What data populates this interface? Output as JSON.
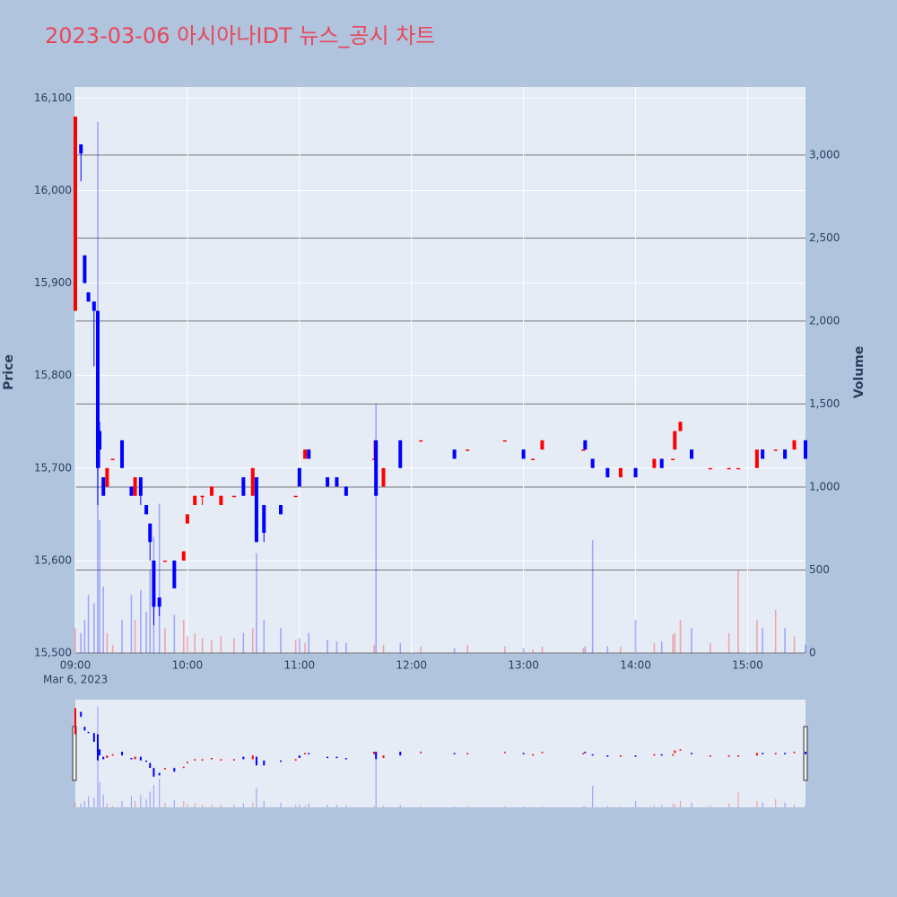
{
  "chart_data": {
    "type": "candlestick",
    "title": "2023-03-06 아시아나IDT 뉴스_공시 차트",
    "y_label": "Price",
    "y2_label": "Volume",
    "x_date_label": "Mar 6, 2023",
    "increasing_color": "#ff0000",
    "decreasing_color": "#0000ff",
    "x": [
      "09:00",
      "09:03",
      "09:05",
      "09:07",
      "09:10",
      "09:12",
      "09:13",
      "09:15",
      "09:17",
      "09:20",
      "09:25",
      "09:30",
      "09:32",
      "09:35",
      "09:38",
      "09:40",
      "09:42",
      "09:45",
      "09:48",
      "09:53",
      "09:58",
      "10:00",
      "10:04",
      "10:08",
      "10:13",
      "10:18",
      "10:25",
      "10:30",
      "10:35",
      "10:37",
      "10:41",
      "10:50",
      "10:58",
      "11:00",
      "11:03",
      "11:05",
      "11:15",
      "11:20",
      "11:25",
      "11:40",
      "11:41",
      "11:45",
      "11:54",
      "12:05",
      "12:23",
      "12:30",
      "12:50",
      "13:00",
      "13:05",
      "13:10",
      "13:32",
      "13:33",
      "13:37",
      "13:45",
      "13:52",
      "14:00",
      "14:10",
      "14:14",
      "14:20",
      "14:21",
      "14:24",
      "14:30",
      "14:40",
      "14:50",
      "14:55",
      "15:05",
      "15:08",
      "15:15",
      "15:20",
      "15:25",
      "15:31"
    ],
    "open": [
      15870,
      16050,
      15930,
      15890,
      15880,
      15870,
      15740,
      15690,
      15680,
      15710,
      15730,
      15680,
      15670,
      15690,
      15660,
      15640,
      15600,
      15560,
      15600,
      15600,
      15600,
      15640,
      15660,
      15670,
      15670,
      15660,
      15670,
      15690,
      15670,
      15690,
      15660,
      15660,
      15670,
      15700,
      15710,
      15720,
      15690,
      15690,
      15680,
      15710,
      15730,
      15680,
      15730,
      15730,
      15720,
      15720,
      15730,
      15720,
      15710,
      15720,
      15720,
      15730,
      15710,
      15700,
      15690,
      15700,
      15700,
      15710,
      15710,
      15720,
      15740,
      15720,
      15700,
      15700,
      15700,
      15700,
      15720,
      15720,
      15720,
      15720,
      15730
    ],
    "high": [
      16080,
      16050,
      15930,
      15890,
      15880,
      15870,
      15750,
      15690,
      15700,
      15710,
      15730,
      15680,
      15690,
      15690,
      15660,
      15640,
      15600,
      15560,
      15600,
      15600,
      15610,
      15650,
      15670,
      15670,
      15680,
      15670,
      15670,
      15690,
      15700,
      15690,
      15660,
      15660,
      15670,
      15700,
      15720,
      15720,
      15690,
      15690,
      15680,
      15730,
      15730,
      15700,
      15730,
      15730,
      15720,
      15720,
      15730,
      15720,
      15710,
      15730,
      15720,
      15730,
      15710,
      15700,
      15700,
      15700,
      15710,
      15710,
      15710,
      15740,
      15750,
      15720,
      15700,
      15700,
      15700,
      15720,
      15720,
      15720,
      15720,
      15730,
      15730
    ],
    "low": [
      15870,
      16010,
      15900,
      15880,
      15810,
      15660,
      15700,
      15670,
      15680,
      15710,
      15700,
      15670,
      15670,
      15660,
      15650,
      15600,
      15530,
      15540,
      15600,
      15570,
      15600,
      15640,
      15660,
      15660,
      15670,
      15660,
      15670,
      15670,
      15670,
      15620,
      15620,
      15650,
      15670,
      15680,
      15710,
      15710,
      15680,
      15680,
      15670,
      15710,
      15670,
      15680,
      15700,
      15730,
      15710,
      15720,
      15730,
      15710,
      15710,
      15720,
      15720,
      15720,
      15700,
      15690,
      15690,
      15690,
      15700,
      15700,
      15710,
      15720,
      15740,
      15710,
      15700,
      15700,
      15700,
      15700,
      15710,
      15720,
      15710,
      15720,
      15710
    ],
    "close": [
      16080,
      16040,
      15900,
      15880,
      15870,
      15700,
      15720,
      15670,
      15700,
      15710,
      15700,
      15670,
      15690,
      15670,
      15650,
      15620,
      15550,
      15550,
      15600,
      15570,
      15610,
      15650,
      15670,
      15670,
      15680,
      15670,
      15670,
      15670,
      15700,
      15620,
      15630,
      15650,
      15670,
      15680,
      15720,
      15710,
      15680,
      15680,
      15670,
      15710,
      15670,
      15700,
      15700,
      15730,
      15710,
      15720,
      15730,
      15710,
      15710,
      15730,
      15720,
      15720,
      15700,
      15690,
      15700,
      15690,
      15710,
      15700,
      15710,
      15740,
      15750,
      15710,
      15700,
      15700,
      15700,
      15720,
      15710,
      15720,
      15710,
      15730,
      15710
    ],
    "volume": [
      150,
      120,
      200,
      350,
      300,
      3200,
      800,
      400,
      120,
      50,
      200,
      350,
      200,
      380,
      250,
      500,
      700,
      900,
      150,
      230,
      200,
      100,
      120,
      90,
      80,
      100,
      90,
      120,
      150,
      600,
      200,
      150,
      80,
      90,
      60,
      120,
      80,
      70,
      60,
      50,
      1500,
      50,
      60,
      40,
      30,
      50,
      40,
      30,
      20,
      40,
      30,
      40,
      680,
      40,
      40,
      200,
      60,
      70,
      110,
      120,
      200,
      150,
      60,
      120,
      500,
      200,
      150,
      260,
      150,
      100,
      50
    ],
    "xlim": [
      "09:00",
      "15:31"
    ],
    "xticks": [
      "09:00",
      "10:00",
      "11:00",
      "12:00",
      "13:00",
      "14:00",
      "15:00"
    ],
    "ylim": [
      15500,
      16112
    ],
    "yticks": [
      {
        "value": 15500,
        "label": "15,500"
      },
      {
        "value": 15600,
        "label": "15,600"
      },
      {
        "value": 15700,
        "label": "15,700"
      },
      {
        "value": 15800,
        "label": "15,800"
      },
      {
        "value": 15900,
        "label": "15,900"
      },
      {
        "value": 16000,
        "label": "16,000"
      },
      {
        "value": 16100,
        "label": "16,100"
      }
    ],
    "y2lim": [
      0,
      3410
    ],
    "y2ticks": [
      0,
      500,
      {
        "value": 1000,
        "label": "1,000"
      },
      {
        "value": 1500,
        "label": "1,500"
      },
      {
        "value": 2000,
        "label": "2,000"
      },
      {
        "value": 2500,
        "label": "2,500"
      },
      {
        "value": 3000,
        "label": "3,000"
      }
    ],
    "grid": true,
    "rangeslider": true
  }
}
